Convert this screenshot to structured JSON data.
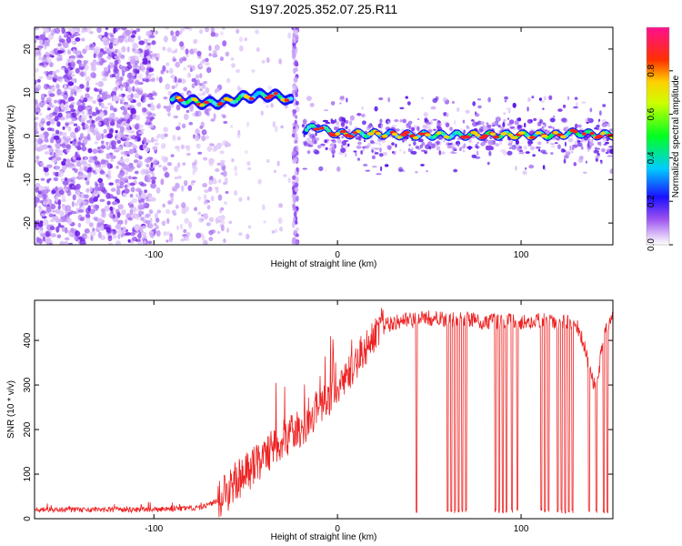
{
  "title": "S197.2025.352.07.25.R11",
  "chart_data": [
    {
      "type": "heatmap",
      "name": "spectrogram",
      "xlabel": "Height of straight line (km)",
      "ylabel": "Frequency (Hz)",
      "xlim": [
        -165,
        150
      ],
      "ylim": [
        -25,
        25
      ],
      "xticks": [
        -100,
        0,
        100
      ],
      "yticks": [
        -20,
        -10,
        0,
        10,
        20
      ],
      "colorbar": {
        "label": "Normalized spectral amplitude",
        "range": [
          0,
          1
        ],
        "ticks": [
          0.0,
          0.2,
          0.4,
          0.6,
          0.8
        ]
      },
      "ridge": [
        {
          "x": -90,
          "y": 8.5
        },
        {
          "x": -80,
          "y": 8.0
        },
        {
          "x": -70,
          "y": 7.5
        },
        {
          "x": -60,
          "y": 8.0
        },
        {
          "x": -50,
          "y": 9.0
        },
        {
          "x": -40,
          "y": 9.5
        },
        {
          "x": -30,
          "y": 9.0
        },
        {
          "x": -25,
          "y": 8.0
        },
        {
          "x": -18,
          "y": 0.5
        },
        {
          "x": -13,
          "y": 2.5
        },
        {
          "x": -8,
          "y": 1.5
        },
        {
          "x": 0,
          "y": 0.5
        },
        {
          "x": 20,
          "y": 0.5
        },
        {
          "x": 40,
          "y": 0.2
        },
        {
          "x": 60,
          "y": 0.2
        },
        {
          "x": 80,
          "y": 0.2
        },
        {
          "x": 100,
          "y": 0.2
        },
        {
          "x": 120,
          "y": 0.2
        },
        {
          "x": 130,
          "y": 0.8
        },
        {
          "x": 140,
          "y": 0.3
        },
        {
          "x": 150,
          "y": 0.2
        }
      ]
    },
    {
      "type": "line",
      "name": "snr",
      "xlabel": "Height of straight line (km)",
      "ylabel": "SNR (10 * v/v)",
      "xlim": [
        -165,
        150
      ],
      "ylim": [
        0,
        490
      ],
      "xticks": [
        -100,
        0,
        100
      ],
      "yticks": [
        0,
        100,
        200,
        300,
        400
      ],
      "series": [
        {
          "name": "SNR",
          "color": "#ee2222",
          "x": [
            -165,
            -150,
            -130,
            -110,
            -90,
            -75,
            -65,
            -60,
            -55,
            -50,
            -45,
            -40,
            -35,
            -30,
            -25,
            -20,
            -15,
            -10,
            -5,
            0,
            5,
            10,
            15,
            20,
            25,
            30,
            40,
            50,
            60,
            70,
            80,
            90,
            100,
            110,
            120,
            130,
            135,
            138,
            140,
            142,
            145,
            148,
            150
          ],
          "values": [
            20,
            20,
            20,
            20,
            22,
            25,
            40,
            60,
            85,
            100,
            120,
            140,
            160,
            180,
            190,
            200,
            220,
            250,
            270,
            290,
            320,
            350,
            380,
            410,
            430,
            440,
            445,
            450,
            445,
            450,
            440,
            445,
            440,
            445,
            440,
            440,
            380,
            320,
            300,
            320,
            420,
            440,
            450
          ]
        }
      ],
      "dropouts_x": [
        43,
        60,
        62,
        64,
        66,
        68,
        70,
        86,
        88,
        90,
        92,
        95,
        98,
        111,
        113,
        115,
        120,
        122,
        124,
        126,
        128,
        137,
        141,
        145,
        147
      ]
    }
  ]
}
